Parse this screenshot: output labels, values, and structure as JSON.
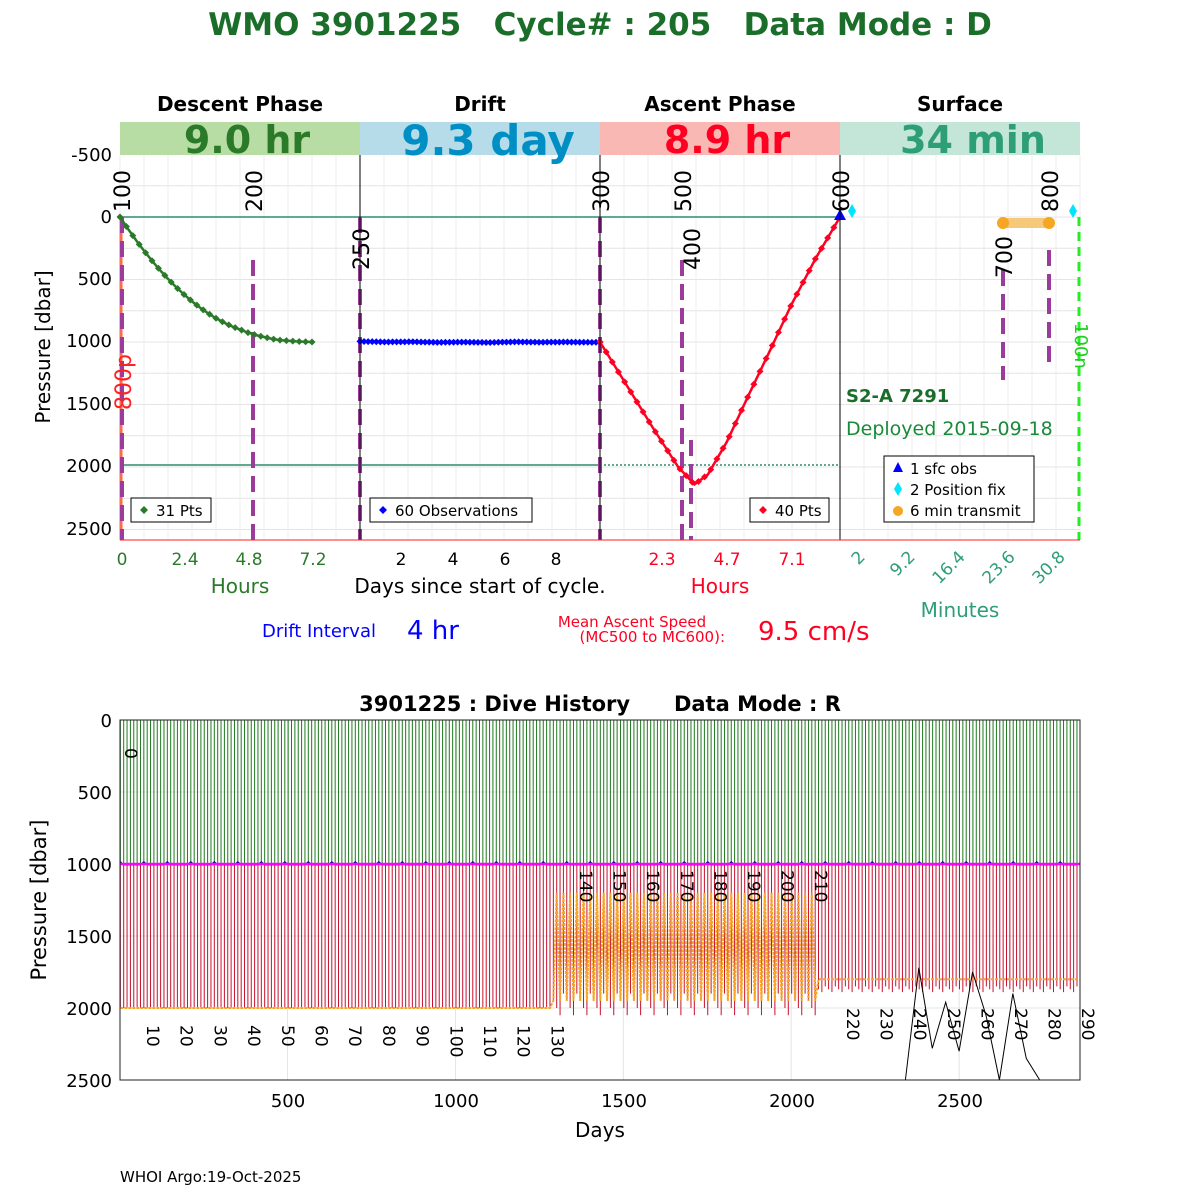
{
  "title": "WMO 3901225   Cycle# : 205   Data Mode : D",
  "footer": "WHOI Argo:19-Oct-2025",
  "colors": {
    "title_green": "#1a6e2a",
    "descent": "#2a7a2a",
    "drift": "#0000ff",
    "ascent": "#ff0022",
    "surface": "#2e9e78",
    "phase_green": "#b7dca4",
    "phase_blue": "#b6dcea",
    "phase_red": "#f9b8b4",
    "phase_teal": "#c4e6d8",
    "mc_purple": "#9b3b9b",
    "transmit_orange": "#f5a623",
    "position_cyan": "#00e5ff",
    "history_green": "#1e7a1e",
    "history_red": "#c8102e",
    "history_magenta": "#ff00ff",
    "history_orange": "#f5a623"
  },
  "top": {
    "phases": [
      {
        "name": "Descent Phase",
        "duration": "9.0 hr"
      },
      {
        "name": "Drift",
        "duration": "9.3 day"
      },
      {
        "name": "Ascent Phase",
        "duration": "8.9 hr"
      },
      {
        "name": "Surface",
        "duration": "34 min"
      }
    ],
    "ylabel": "Pressure [dbar]",
    "yticks": [
      "-500",
      "0",
      "500",
      "1000",
      "1500",
      "2000",
      "2500"
    ],
    "descent_xticks": [
      "0",
      "2.4",
      "4.8",
      "7.2"
    ],
    "descent_xlabel": "Hours",
    "drift_xticks": [
      "2",
      "4",
      "6",
      "8"
    ],
    "drift_xlabel": "Days since start of cycle.",
    "ascent_xticks": [
      "2.3",
      "4.7",
      "7.1"
    ],
    "ascent_xlabel": "Hours",
    "surface_xticks": [
      "2",
      "9.2",
      "16.4",
      "23.6",
      "30.8"
    ],
    "surface_xlabel": "Minutes",
    "mc_labels": [
      "100",
      "200",
      "250",
      "300",
      "400",
      "500",
      "600",
      "700",
      "800"
    ],
    "side_labels": {
      "left": "800p",
      "right": "100n"
    },
    "legends": {
      "descent": "31 Pts",
      "drift": "60 Observations",
      "ascent": "40 Pts"
    },
    "surface_legend": [
      "1 sfc obs",
      "2 Position fix",
      "6 min transmit"
    ],
    "float_id": "S2-A 7291",
    "deployed": "Deployed 2015-09-18",
    "drift_interval_label": "Drift Interval",
    "drift_interval_value": "4 hr",
    "ascent_speed_label1": "Mean Ascent Speed",
    "ascent_speed_label2": "(MC500 to MC600):",
    "ascent_speed_value": "9.5 cm/s"
  },
  "bottom": {
    "title": "3901225 : Dive History      Data Mode : R",
    "ylabel": "Pressure [dbar]",
    "yticks": [
      "0",
      "500",
      "1000",
      "1500",
      "2000",
      "2500"
    ],
    "xticks": [
      "500",
      "1000",
      "1500",
      "2000",
      "2500"
    ],
    "xlabel": "Days",
    "cycle_labels": [
      "0",
      "10",
      "20",
      "30",
      "40",
      "50",
      "60",
      "70",
      "80",
      "90",
      "100",
      "110",
      "120",
      "130",
      "140",
      "150",
      "160",
      "170",
      "180",
      "190",
      "200",
      "210",
      "220",
      "230",
      "240",
      "250",
      "260",
      "270",
      "280",
      "290"
    ]
  },
  "chart_data": [
    {
      "type": "line",
      "title": "WMO 3901225   Cycle# : 205   Data Mode : D",
      "ylabel": "Pressure [dbar]",
      "ylim": [
        2600,
        -600
      ],
      "series": [
        {
          "name": "Descent Phase",
          "xlabel": "Hours",
          "xlim": [
            0,
            9.0
          ],
          "x": [
            0,
            0.3,
            0.6,
            0.9,
            1.2,
            1.5,
            1.8,
            2.1,
            2.4,
            2.7,
            3.0,
            3.3,
            3.6,
            3.9,
            4.2,
            4.5,
            4.8,
            5.1,
            5.4,
            5.7,
            6.0,
            6.3,
            6.6,
            6.9,
            7.2
          ],
          "y": [
            0,
            95,
            185,
            270,
            350,
            425,
            495,
            560,
            620,
            675,
            725,
            770,
            810,
            845,
            875,
            900,
            925,
            945,
            960,
            975,
            985,
            990,
            995,
            998,
            1000
          ]
        },
        {
          "name": "Drift",
          "xlabel": "Days since start of cycle.",
          "xlim": [
            0,
            9.3
          ],
          "x": [
            0,
            1,
            2,
            3,
            4,
            5,
            6,
            7,
            8,
            9,
            9.3
          ],
          "y": [
            995,
            1000,
            998,
            1003,
            1001,
            1004,
            999,
            1002,
            1000,
            1003,
            1000
          ]
        },
        {
          "name": "Ascent Phase",
          "xlabel": "Hours",
          "xlim": [
            0,
            8.9
          ],
          "x": [
            0,
            1.0,
            2.0,
            2.9,
            3.5,
            4.0,
            4.7,
            5.5,
            6.3,
            7.1,
            8.0,
            8.9
          ],
          "y": [
            1000,
            1350,
            1700,
            2000,
            2140,
            2060,
            1800,
            1430,
            1070,
            700,
            330,
            0
          ]
        },
        {
          "name": "Surface",
          "xlabel": "Minutes",
          "xlim": [
            0,
            34
          ],
          "x": [
            0,
            26.6,
            34
          ],
          "y": [
            0,
            0,
            0
          ]
        }
      ],
      "annotations": [
        "31 Pts",
        "60 Observations",
        "40 Pts",
        "1 sfc obs",
        "2 Position fix",
        "6 min transmit",
        "S2-A 7291",
        "Deployed 2015-09-18"
      ]
    },
    {
      "type": "bar",
      "title": "3901225 : Dive History      Data Mode : R",
      "xlabel": "Days",
      "ylabel": "Pressure [dbar]",
      "xlim": [
        1,
        2860
      ],
      "ylim": [
        2500,
        0
      ],
      "park_pressure": 1000,
      "profile_depth_segments": [
        {
          "day_start": 1,
          "day_end": 1290,
          "depth": 2000
        },
        {
          "day_start": 1290,
          "day_end": 2080,
          "depth": 1200
        },
        {
          "day_start": 2080,
          "day_end": 2860,
          "depth": 1800
        }
      ],
      "cycles_per_10_days": 10
    }
  ]
}
